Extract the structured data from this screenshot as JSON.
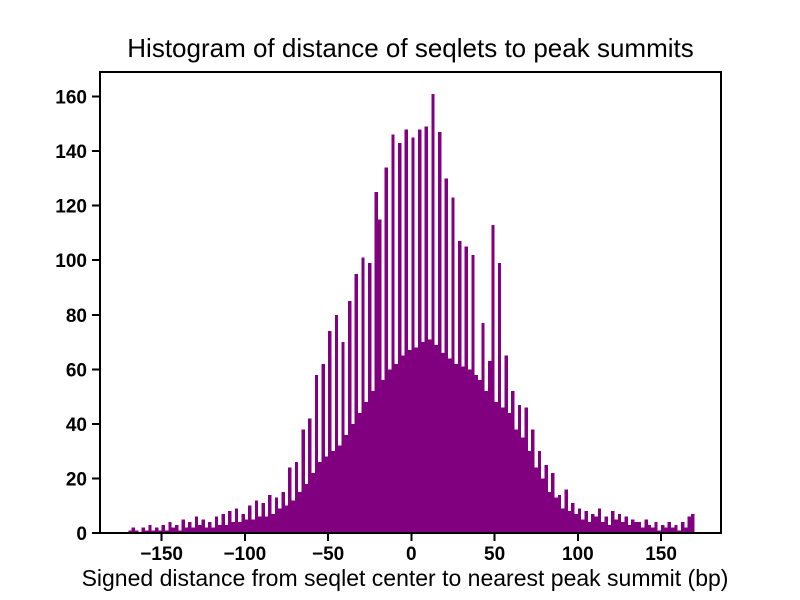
{
  "figure": {
    "title": "Histogram of distance of seqlets to peak summits",
    "xlabel": "Signed distance from seqlet center to nearest peak summit (bp)"
  },
  "chart_data": {
    "type": "bar",
    "title": "Histogram of distance of seqlets to peak summits",
    "xlabel": "Signed distance from seqlet center to nearest peak summit (bp)",
    "ylabel": "",
    "bar_color": "#800080",
    "axis_color": "#000000",
    "background": "#ffffff",
    "grid": false,
    "legend": false,
    "xlim": [
      -187,
      186
    ],
    "ylim": [
      0,
      169
    ],
    "xticks": [
      -150,
      -100,
      -50,
      0,
      50,
      100,
      150
    ],
    "xtick_labels": [
      "−150",
      "−100",
      "−50",
      "0",
      "50",
      "100",
      "150"
    ],
    "yticks": [
      0,
      20,
      40,
      60,
      80,
      100,
      120,
      140,
      160
    ],
    "ytick_labels": [
      "0",
      "20",
      "40",
      "60",
      "80",
      "100",
      "120",
      "140",
      "160"
    ],
    "bin_start": -172,
    "bin_width": 2,
    "counts": [
      0,
      1,
      2,
      1,
      0,
      2,
      1,
      3,
      1,
      2,
      1,
      3,
      1,
      4,
      2,
      3,
      1,
      5,
      2,
      4,
      2,
      6,
      3,
      5,
      2,
      4,
      2,
      6,
      3,
      7,
      3,
      8,
      4,
      9,
      4,
      7,
      5,
      10,
      5,
      12,
      6,
      11,
      6,
      14,
      7,
      13,
      9,
      15,
      10,
      24,
      12,
      26,
      15,
      38,
      18,
      42,
      22,
      58,
      26,
      62,
      28,
      74,
      30,
      80,
      32,
      70,
      36,
      85,
      40,
      95,
      44,
      101,
      48,
      99,
      52,
      125,
      115,
      56,
      134,
      60,
      146,
      62,
      143,
      65,
      148,
      67,
      145,
      68,
      148,
      70,
      149,
      71,
      161,
      69,
      147,
      66,
      130,
      64,
      123,
      62,
      107,
      61,
      105,
      60,
      102,
      58,
      56,
      77,
      52,
      63,
      113,
      48,
      99,
      46,
      65,
      44,
      52,
      38,
      47,
      35,
      46,
      30,
      38,
      24,
      30,
      20,
      25,
      15,
      22,
      13,
      14,
      9,
      16,
      8,
      11,
      7,
      9,
      5,
      8,
      4,
      7,
      6,
      9,
      4,
      6,
      3,
      8,
      5,
      7,
      4,
      6,
      3,
      5,
      4,
      4,
      2,
      5,
      3,
      2,
      4,
      1,
      3,
      2,
      4,
      2,
      3,
      1,
      4,
      2,
      6,
      7,
      0
    ]
  }
}
